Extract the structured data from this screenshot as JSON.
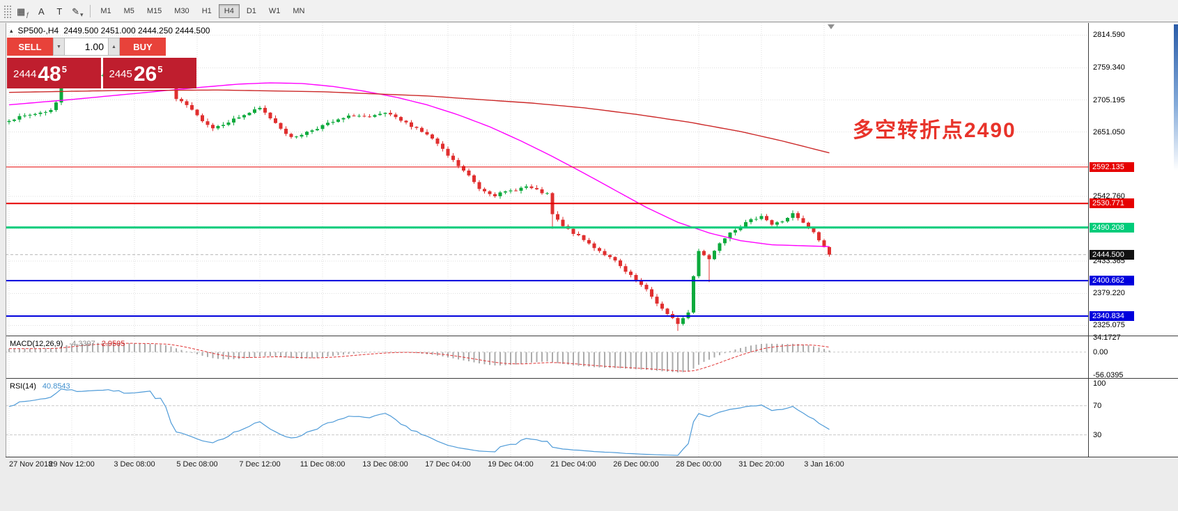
{
  "toolbar": {
    "icons": [
      {
        "name": "indicators-list-icon",
        "glyph": "▦",
        "sub": "ƒ"
      },
      {
        "name": "cursor-tool-icon",
        "glyph": "A",
        "sub": ""
      },
      {
        "name": "text-label-tool-icon",
        "glyph": "T",
        "sub": ""
      },
      {
        "name": "draw-tools-icon",
        "glyph": "✎",
        "sub": "▾"
      }
    ],
    "timeframes": [
      {
        "label": "M1",
        "active": false
      },
      {
        "label": "M5",
        "active": false
      },
      {
        "label": "M15",
        "active": false
      },
      {
        "label": "M30",
        "active": false
      },
      {
        "label": "H1",
        "active": false
      },
      {
        "label": "H4",
        "active": true
      },
      {
        "label": "D1",
        "active": false
      },
      {
        "label": "W1",
        "active": false
      },
      {
        "label": "MN",
        "active": false
      }
    ]
  },
  "chart": {
    "symbol_line": {
      "toggle_glyph": "▴",
      "symbol": "SP500-,H4",
      "ohlc": "2449.500 2451.000 2444.250 2444.500"
    },
    "trade_panel": {
      "sell_label": "SELL",
      "buy_label": "BUY",
      "volume": "1.00",
      "down_glyph": "▼",
      "up_glyph": "▲",
      "sell_price": {
        "big": "2444",
        "mid": "48",
        "sup": "5"
      },
      "buy_price": {
        "big": "2445",
        "mid": "26",
        "sup": "5"
      },
      "button_color": "#e8423a",
      "tile_color": "#bf1e2e"
    },
    "annotation": {
      "text": "多空转折点2490",
      "color": "#e8332a"
    }
  },
  "indicators": {
    "macd": {
      "label": "MACD(12,26,9)",
      "value_main": "-4.3397",
      "value_signal": "2.9505",
      "histogram_color": "#ababab",
      "signal_color": "#e03535",
      "axis_labels": [
        "34.1727",
        "0.00",
        "-56.0395"
      ]
    },
    "rsi": {
      "label": "RSI(14)",
      "value": "40.8543",
      "line_color": "#4f9bd8",
      "axis_labels": [
        "100",
        "70",
        "30"
      ]
    }
  },
  "chart_data": {
    "type": "candlestick",
    "symbol": "SP500-",
    "timeframe": "H4",
    "title": "SP500-,H4",
    "current_bar": {
      "open": 2449.5,
      "high": 2451.0,
      "low": 2444.25,
      "close": 2444.5
    },
    "bars": 158,
    "first_open": 2668,
    "close_path_anchors": [
      [
        0,
        2672
      ],
      [
        4,
        2680
      ],
      [
        8,
        2688
      ],
      [
        9,
        2700
      ],
      [
        10,
        2738
      ],
      [
        13,
        2736
      ],
      [
        16,
        2744
      ],
      [
        20,
        2752
      ],
      [
        24,
        2756
      ],
      [
        27,
        2763
      ],
      [
        29,
        2758
      ],
      [
        30,
        2752
      ],
      [
        31,
        2730
      ],
      [
        32,
        2706
      ],
      [
        34,
        2696
      ],
      [
        36,
        2678
      ],
      [
        39,
        2658
      ],
      [
        42,
        2669
      ],
      [
        45,
        2680
      ],
      [
        48,
        2691
      ],
      [
        51,
        2667
      ],
      [
        54,
        2641
      ],
      [
        57,
        2651
      ],
      [
        60,
        2662
      ],
      [
        63,
        2671
      ],
      [
        66,
        2680
      ],
      [
        69,
        2675
      ],
      [
        72,
        2683
      ],
      [
        75,
        2670
      ],
      [
        78,
        2658
      ],
      [
        81,
        2640
      ],
      [
        84,
        2611
      ],
      [
        86,
        2594
      ],
      [
        88,
        2577
      ],
      [
        90,
        2556
      ],
      [
        93,
        2545
      ],
      [
        96,
        2552
      ],
      [
        99,
        2559
      ],
      [
        102,
        2549
      ],
      [
        103,
        2546
      ],
      [
        104,
        2512
      ],
      [
        106,
        2492
      ],
      [
        108,
        2481
      ],
      [
        110,
        2469
      ],
      [
        113,
        2451
      ],
      [
        116,
        2433
      ],
      [
        118,
        2415
      ],
      [
        120,
        2401
      ],
      [
        122,
        2384
      ],
      [
        124,
        2363
      ],
      [
        126,
        2343
      ],
      [
        128,
        2329
      ],
      [
        129,
        2337
      ],
      [
        130,
        2347
      ],
      [
        131,
        2408
      ],
      [
        132,
        2452
      ],
      [
        134,
        2437
      ],
      [
        136,
        2465
      ],
      [
        138,
        2483
      ],
      [
        140,
        2493
      ],
      [
        142,
        2502
      ],
      [
        144,
        2511
      ],
      [
        146,
        2495
      ],
      [
        148,
        2501
      ],
      [
        150,
        2513
      ],
      [
        152,
        2497
      ],
      [
        154,
        2481
      ],
      [
        156,
        2457
      ],
      [
        157,
        2444.5
      ]
    ],
    "wick_overrides": {
      "27": {
        "high": 2770
      },
      "104": {
        "low": 2488
      },
      "128": {
        "low": 2316
      },
      "134": {
        "low": 2398
      }
    },
    "candle_up_color": "#0caa3c",
    "candle_down_color": "#e02f2f",
    "overlays": [
      {
        "name": "ma-fast-magenta",
        "color": "#ff00ff",
        "anchors": [
          [
            0,
            2697
          ],
          [
            12,
            2706
          ],
          [
            24,
            2716
          ],
          [
            36,
            2726
          ],
          [
            44,
            2732
          ],
          [
            50,
            2734
          ],
          [
            56,
            2733
          ],
          [
            62,
            2728
          ],
          [
            68,
            2720
          ],
          [
            74,
            2710
          ],
          [
            80,
            2697
          ],
          [
            86,
            2680
          ],
          [
            92,
            2660
          ],
          [
            98,
            2636
          ],
          [
            104,
            2610
          ],
          [
            110,
            2582
          ],
          [
            116,
            2553
          ],
          [
            122,
            2524
          ],
          [
            128,
            2499
          ],
          [
            134,
            2481
          ],
          [
            140,
            2468
          ],
          [
            146,
            2461
          ],
          [
            157,
            2458
          ]
        ]
      },
      {
        "name": "ma-slow-red",
        "color": "#cc2929",
        "anchors": [
          [
            0,
            2718
          ],
          [
            20,
            2721
          ],
          [
            40,
            2722
          ],
          [
            60,
            2719
          ],
          [
            80,
            2712
          ],
          [
            100,
            2700
          ],
          [
            110,
            2692
          ],
          [
            120,
            2681
          ],
          [
            130,
            2668
          ],
          [
            140,
            2652
          ],
          [
            148,
            2636
          ],
          [
            157,
            2616
          ]
        ]
      }
    ],
    "horizontal_levels": [
      {
        "price": 2592.135,
        "color": "#e60000",
        "width": 1
      },
      {
        "price": 2530.771,
        "color": "#e60000",
        "width": 2
      },
      {
        "price": 2490.208,
        "color": "#00cc7a",
        "width": 3
      },
      {
        "price": 2400.662,
        "color": "#0000dd",
        "width": 2
      },
      {
        "price": 2340.834,
        "color": "#0000dd",
        "width": 2
      }
    ],
    "current_price": 2444.5,
    "y_axis": {
      "ticks": [
        2814.59,
        2759.34,
        2705.195,
        2651.05,
        2542.76,
        2433.365,
        2379.22,
        2325.075
      ],
      "extra_gridlines": [
        2596.905,
        2488.615
      ],
      "range": [
        2308,
        2835
      ]
    },
    "x_axis": {
      "labels": [
        "27 Nov 2018",
        "29 Nov 12:00",
        "3 Dec 08:00",
        "5 Dec 08:00",
        "7 Dec 12:00",
        "11 Dec 08:00",
        "13 Dec 08:00",
        "17 Dec 04:00",
        "19 Dec 04:00",
        "21 Dec 04:00",
        "26 Dec 00:00",
        "28 Dec 00:00",
        "31 Dec 20:00",
        "3 Jan 16:00"
      ],
      "bars_per_label": 12
    },
    "indicator_panels": [
      {
        "name": "MACD",
        "params": [
          12,
          26,
          9
        ],
        "current": [
          -4.3397,
          2.9505
        ],
        "range": [
          -62,
          38
        ],
        "axis_labels": [
          34.1727,
          0,
          -56.0395
        ]
      },
      {
        "name": "RSI",
        "params": [
          14
        ],
        "current": 40.8543,
        "range": [
          0,
          107
        ],
        "levels": [
          70,
          30
        ],
        "axis_labels": [
          100,
          70,
          30
        ]
      }
    ]
  }
}
